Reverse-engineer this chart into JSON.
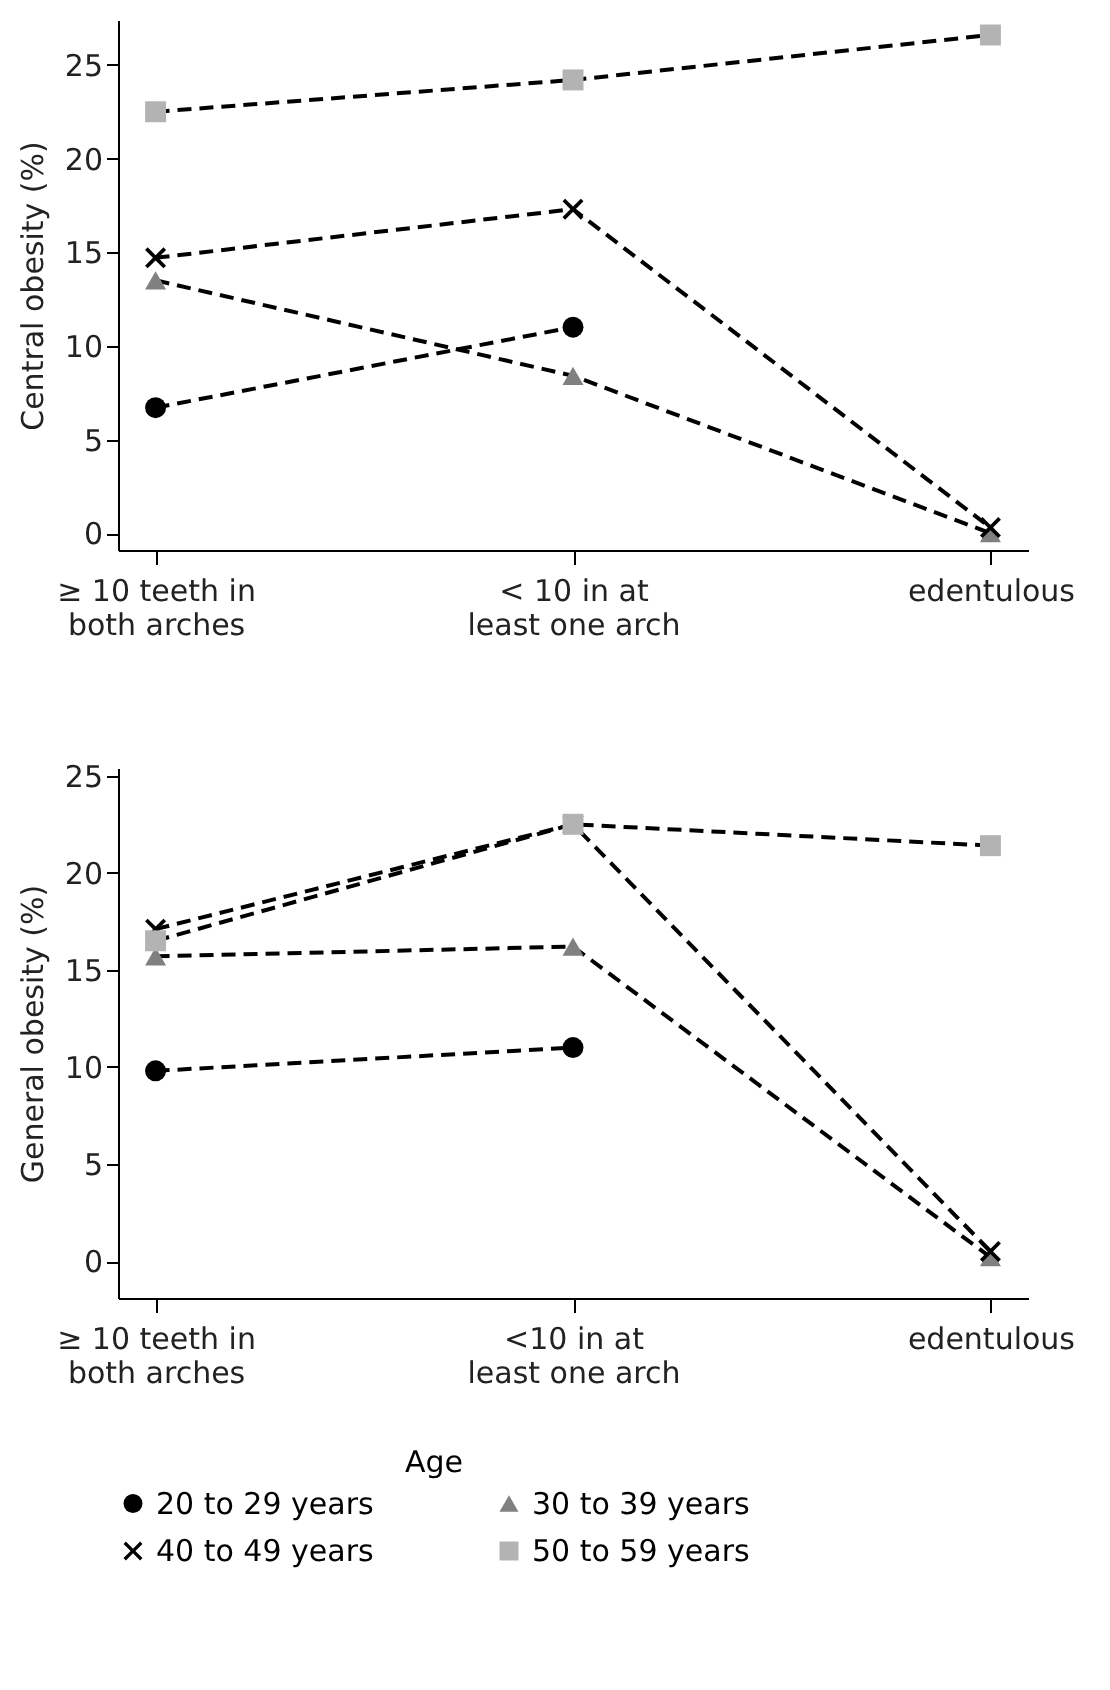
{
  "chart_data": [
    {
      "type": "line",
      "categories": [
        "≥ 10 teeth in both arches",
        "< 10 in at least one arch",
        "edentulous"
      ],
      "ylabel": "Central obesity (%)",
      "ylim": [
        -0.9,
        27.4
      ],
      "yticks": [
        0,
        5,
        10,
        15,
        20,
        25
      ],
      "line_style": "dashed",
      "legend": "bottom",
      "series": [
        {
          "name": "20 to 29 years",
          "color": "#000000",
          "marker": "circle",
          "values": [
            6.7,
            11.0,
            null
          ]
        },
        {
          "name": "30 to 39 years",
          "color": "#808080",
          "marker": "triangle",
          "values": [
            13.5,
            8.4,
            0
          ]
        },
        {
          "name": "40 to 49 years",
          "color": "#000000",
          "marker": "cross",
          "values": [
            14.7,
            17.3,
            0.3
          ]
        },
        {
          "name": "50 to 59 years",
          "color": "#b3b3b3",
          "marker": "square",
          "values": [
            22.5,
            24.2,
            26.6
          ]
        }
      ]
    },
    {
      "type": "line",
      "categories": [
        "≥ 10 teeth in both arches",
        "<10 in at least one arch",
        "edentulous"
      ],
      "ylabel": "General obesity (%)",
      "ylim": [
        -1.9,
        25.4
      ],
      "yticks": [
        0,
        5,
        10,
        15,
        20,
        25
      ],
      "line_style": "dashed",
      "legend": "bottom",
      "legend_title": "Age",
      "series": [
        {
          "name": "20 to 29 years",
          "color": "#000000",
          "marker": "circle",
          "values": [
            9.8,
            11.0,
            null
          ]
        },
        {
          "name": "30 to 39 years",
          "color": "#808080",
          "marker": "triangle",
          "values": [
            15.7,
            16.2,
            0.2
          ]
        },
        {
          "name": "40 to 49 years",
          "color": "#000000",
          "marker": "cross",
          "values": [
            17.1,
            22.5,
            0.5
          ]
        },
        {
          "name": "50 to 59 years",
          "color": "#b3b3b3",
          "marker": "square",
          "values": [
            16.5,
            22.5,
            21.4
          ]
        }
      ]
    }
  ]
}
